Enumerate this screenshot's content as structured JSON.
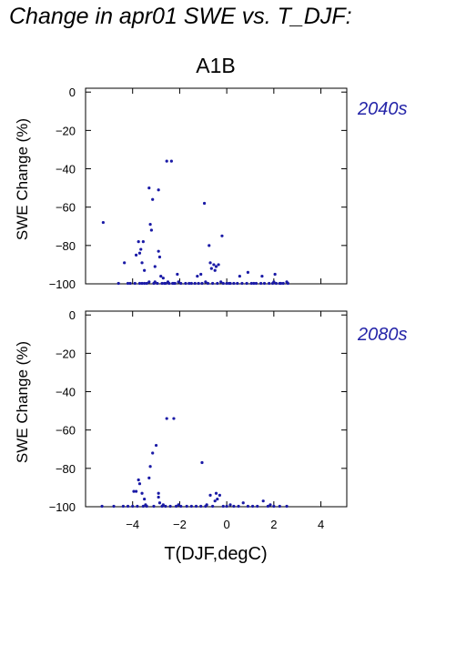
{
  "page_title": "Change in apr01 SWE vs. T_DJF:",
  "scenario": "A1B",
  "point_color": "#1a1aa6",
  "label_color": "#2424a8",
  "chart_data": [
    {
      "type": "scatter",
      "panel_label": "2040s",
      "xlabel": "T(DJF,degC)",
      "ylabel": "SWE Change (%)",
      "xlim": [
        -6.0,
        5.1
      ],
      "ylim": [
        -100,
        2
      ],
      "xticks": [
        -4,
        -2,
        0,
        2,
        4
      ],
      "xtick_labels": [
        "-4",
        "-2",
        "0",
        "2",
        "4"
      ],
      "yticks": [
        0,
        -20,
        -40,
        -60,
        -80,
        -100
      ],
      "ytick_labels": [
        "0",
        "−20",
        "−40",
        "−60",
        "−80",
        "−100"
      ],
      "grid": false,
      "x": [
        -5.25,
        -4.35,
        -3.85,
        -3.75,
        -3.7,
        -3.65,
        -3.6,
        -3.55,
        -3.5,
        -3.3,
        -3.25,
        -3.2,
        -3.15,
        -3.05,
        -2.9,
        -2.9,
        -2.85,
        -2.8,
        -2.7,
        -2.55,
        -2.35,
        -2.1,
        -1.25,
        -0.95,
        -0.75,
        -0.7,
        -0.65,
        -0.55,
        -0.45,
        -0.35,
        -0.2,
        0.55,
        -2.05,
        -1.1,
        -0.9,
        -0.5,
        -0.25,
        0.9,
        1.5,
        2.05,
        -3.9,
        -3.7,
        -3.5,
        -3.1,
        -2.75,
        -2.6,
        -2.5,
        -4.1,
        -4.2,
        -3.6,
        -3.4,
        -2.95,
        -2.65,
        -2.45,
        -2.25,
        -1.95,
        -1.75,
        -1.5,
        -1.35,
        -1.2,
        -1.05,
        -0.8,
        -0.6,
        -0.4,
        -0.15,
        0.0,
        0.15,
        0.3,
        0.45,
        0.65,
        0.85,
        1.05,
        1.25,
        1.45,
        1.6,
        1.8,
        1.95,
        2.1,
        2.25,
        2.4,
        2.6,
        -2.3,
        -1.6,
        2.55,
        -4.6,
        -3.3,
        -3.05,
        -2.2,
        0.1,
        1.15,
        2.0,
        2.3
      ],
      "y": [
        -68,
        -89,
        -85,
        -78,
        -84,
        -82,
        -89,
        -78,
        -93,
        -50,
        -69,
        -72,
        -56,
        -91,
        -51,
        -83,
        -86,
        -96,
        -97,
        -36,
        -36,
        -95,
        -96,
        -58,
        -80,
        -89,
        -92,
        -90,
        -91,
        -90,
        -75,
        -96,
        -99,
        -95,
        -99,
        -93,
        -99,
        -94,
        -96,
        -95,
        -100,
        -100,
        -100,
        -100,
        -100,
        -100,
        -99,
        -100,
        -100,
        -100,
        -100,
        -100,
        -100,
        -100,
        -100,
        -100,
        -100,
        -100,
        -100,
        -100,
        -100,
        -100,
        -100,
        -100,
        -100,
        -100,
        -100,
        -100,
        -100,
        -100,
        -100,
        -100,
        -100,
        -100,
        -100,
        -100,
        -100,
        -100,
        -100,
        -100,
        -100,
        -100,
        -100,
        -99,
        -100,
        -99,
        -99,
        -100,
        -100,
        -100,
        -99,
        -100
      ]
    },
    {
      "type": "scatter",
      "panel_label": "2080s",
      "xlabel": "T(DJF,degC)",
      "ylabel": "SWE Change (%)",
      "xlim": [
        -6.0,
        5.1
      ],
      "ylim": [
        -100,
        2
      ],
      "xticks": [
        -4,
        -2,
        0,
        2,
        4
      ],
      "xtick_labels": [
        "−4",
        "−2",
        "0",
        "2",
        "4"
      ],
      "yticks": [
        0,
        -20,
        -40,
        -60,
        -80,
        -100
      ],
      "ytick_labels": [
        "0",
        "−20",
        "−40",
        "−60",
        "−80",
        "−100"
      ],
      "grid": false,
      "x": [
        -3.95,
        -3.85,
        -3.75,
        -3.7,
        -3.6,
        -3.5,
        -3.25,
        -3.15,
        -3.0,
        -2.9,
        -2.9,
        -2.85,
        -2.55,
        -2.25,
        -1.05,
        -0.7,
        -0.5,
        -0.45,
        -0.3,
        -0.4,
        0.7,
        1.55,
        -3.3,
        -2.05,
        -0.85,
        0.15,
        -5.3,
        -4.8,
        -4.4,
        -4.2,
        -4.0,
        -3.8,
        -3.55,
        -3.4,
        -3.1,
        -2.75,
        -2.6,
        -2.4,
        -2.15,
        -1.95,
        -1.7,
        -1.5,
        -1.3,
        -1.1,
        -0.9,
        -0.6,
        -0.15,
        0.0,
        0.3,
        0.5,
        0.9,
        1.1,
        1.3,
        1.75,
        2.0,
        2.25,
        2.55,
        -3.45,
        -2.7,
        1.85
      ],
      "y": [
        -92,
        -92,
        -86,
        -88,
        -93,
        -96,
        -79,
        -72,
        -68,
        -93,
        -95,
        -98,
        -54,
        -54,
        -77,
        -94,
        -97,
        -93,
        -94,
        -96,
        -98,
        -97,
        -85,
        -99,
        -99,
        -99,
        -100,
        -100,
        -100,
        -100,
        -100,
        -100,
        -100,
        -100,
        -100,
        -100,
        -100,
        -100,
        -100,
        -100,
        -100,
        -100,
        -100,
        -100,
        -100,
        -100,
        -100,
        -100,
        -100,
        -100,
        -100,
        -100,
        -100,
        -100,
        -100,
        -100,
        -100,
        -99,
        -99,
        -99
      ]
    }
  ]
}
